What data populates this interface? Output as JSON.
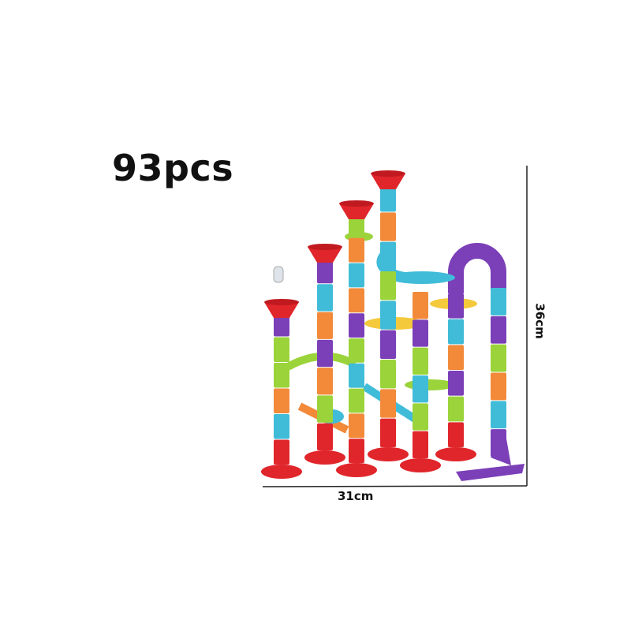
{
  "product": {
    "piece_count": "93pcs",
    "width_label": "31cm",
    "height_label": "36cm"
  },
  "colors": {
    "red": "#e0262b",
    "purple": "#7b3fb8",
    "green": "#9bd33a",
    "orange": "#f28a3a",
    "cyan": "#40bcd8",
    "yellow": "#f4c93c"
  }
}
